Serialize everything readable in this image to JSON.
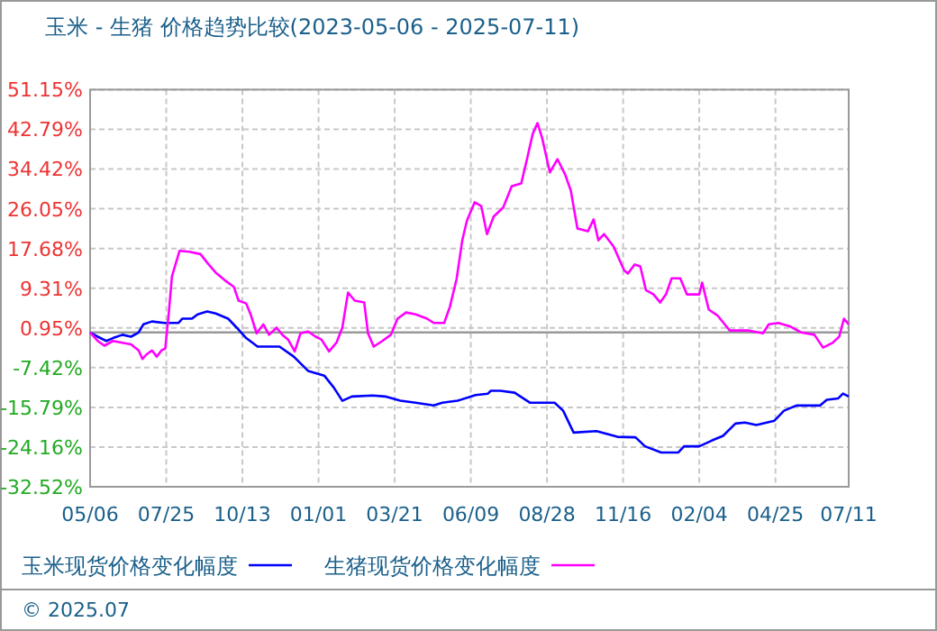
{
  "chart_data": {
    "type": "line",
    "title": "玉米 - 生猪 价格趋势比较(2023-05-06 - 2025-07-11)",
    "xlim": [
      "2023-05-06",
      "2025-07-11"
    ],
    "xticks": [
      {
        "value": "2023-05-06",
        "label": "05/06"
      },
      {
        "value": "2023-07-25",
        "label": "07/25"
      },
      {
        "value": "2023-10-13",
        "label": "10/13"
      },
      {
        "value": "2024-01-01",
        "label": "01/01"
      },
      {
        "value": "2024-03-21",
        "label": "03/21"
      },
      {
        "value": "2024-06-09",
        "label": "06/09"
      },
      {
        "value": "2024-08-28",
        "label": "08/28"
      },
      {
        "value": "2024-11-16",
        "label": "11/16"
      },
      {
        "value": "2025-02-04",
        "label": "02/04"
      },
      {
        "value": "2025-04-25",
        "label": "04/25"
      },
      {
        "value": "2025-07-11",
        "label": "07/11"
      }
    ],
    "ylim": [
      -32.52,
      51.15
    ],
    "yticks": [
      {
        "value": 51.15,
        "label": "51.15%"
      },
      {
        "value": 42.79,
        "label": "42.79%"
      },
      {
        "value": 34.42,
        "label": "34.42%"
      },
      {
        "value": 26.05,
        "label": "26.05%"
      },
      {
        "value": 17.68,
        "label": "17.68%"
      },
      {
        "value": 9.31,
        "label": "9.31%"
      },
      {
        "value": 0.95,
        "label": "0.95%"
      },
      {
        "value": -7.42,
        "label": "-7.42%"
      },
      {
        "value": -15.79,
        "label": "-15.79%"
      },
      {
        "value": -24.16,
        "label": "-24.16%"
      },
      {
        "value": -32.52,
        "label": "-32.52%"
      }
    ],
    "grid": true,
    "legend": "bottom",
    "line_style": "solid",
    "marker": "none",
    "ref_lines": [
      {
        "axis": "y",
        "value": 0,
        "color": "#999999"
      }
    ],
    "annotations": [
      "© 2025.07"
    ],
    "series": [
      {
        "name": "玉米现货价格变化幅度",
        "color": "#0000ff",
        "x": [
          "2023-05-06",
          "2023-05-14",
          "2023-05-23",
          "2023-05-30",
          "2023-06-09",
          "2023-06-18",
          "2023-06-26",
          "2023-07-01",
          "2023-07-10",
          "2023-07-23",
          "2023-08-07",
          "2023-08-11",
          "2023-08-21",
          "2023-08-27",
          "2023-09-06",
          "2023-09-15",
          "2023-09-28",
          "2023-10-07",
          "2023-10-17",
          "2023-10-29",
          "2023-11-21",
          "2023-12-06",
          "2023-12-21",
          "2024-01-07",
          "2024-01-17",
          "2024-01-26",
          "2024-02-05",
          "2024-02-27",
          "2024-03-11",
          "2024-03-27",
          "2024-04-12",
          "2024-05-01",
          "2024-05-10",
          "2024-05-26",
          "2024-06-14",
          "2024-06-27",
          "2024-06-30",
          "2024-07-10",
          "2024-07-25",
          "2024-08-10",
          "2024-09-05",
          "2024-09-14",
          "2024-09-25",
          "2024-10-19",
          "2024-11-10",
          "2024-11-29",
          "2024-12-09",
          "2024-12-26",
          "2025-01-13",
          "2025-01-19",
          "2025-02-04",
          "2025-02-17",
          "2025-03-01",
          "2025-03-14",
          "2025-03-24",
          "2025-04-05",
          "2025-04-24",
          "2025-05-04",
          "2025-05-17",
          "2025-06-11",
          "2025-06-18",
          "2025-06-30",
          "2025-07-05",
          "2025-07-11"
        ],
        "values": [
          0,
          -0.9,
          -1.8,
          -1.2,
          -0.5,
          -0.9,
          0,
          1.7,
          2.3,
          2.0,
          2.0,
          2.9,
          2.9,
          3.8,
          4.4,
          4.0,
          2.9,
          1.0,
          -1.2,
          -3.0,
          -3.0,
          -5.1,
          -8.1,
          -9.1,
          -11.6,
          -14.4,
          -13.5,
          -13.3,
          -13.5,
          -14.4,
          -14.8,
          -15.4,
          -14.8,
          -14.4,
          -13.2,
          -12.9,
          -12.3,
          -12.3,
          -12.7,
          -14.8,
          -14.8,
          -16.5,
          -21.1,
          -20.8,
          -22.0,
          -22.1,
          -24.0,
          -25.3,
          -25.3,
          -24.0,
          -24.0,
          -22.8,
          -21.8,
          -19.2,
          -19.0,
          -19.5,
          -18.6,
          -16.5,
          -15.4,
          -15.4,
          -14.2,
          -13.9,
          -12.9,
          -13.5
        ]
      },
      {
        "name": "生猪现货价格变化幅度",
        "color": "#ff00ff",
        "x": [
          "2023-05-06",
          "2023-05-14",
          "2023-05-21",
          "2023-05-30",
          "2023-06-09",
          "2023-06-18",
          "2023-06-26",
          "2023-06-30",
          "2023-07-04",
          "2023-07-10",
          "2023-07-15",
          "2023-07-20",
          "2023-07-24",
          "2023-07-28",
          "2023-07-31",
          "2023-08-08",
          "2023-08-18",
          "2023-08-30",
          "2023-09-06",
          "2023-09-15",
          "2023-09-25",
          "2023-10-04",
          "2023-10-09",
          "2023-10-17",
          "2023-10-22",
          "2023-10-28",
          "2023-11-04",
          "2023-11-10",
          "2023-11-18",
          "2023-11-24",
          "2023-11-30",
          "2023-12-07",
          "2023-12-13",
          "2023-12-21",
          "2023-12-29",
          "2024-01-04",
          "2024-01-12",
          "2024-01-20",
          "2024-01-26",
          "2024-02-01",
          "2024-02-08",
          "2024-02-18",
          "2024-02-22",
          "2024-02-28",
          "2024-03-08",
          "2024-03-17",
          "2024-03-24",
          "2024-04-02",
          "2024-04-12",
          "2024-04-24",
          "2024-05-01",
          "2024-05-12",
          "2024-05-18",
          "2024-05-25",
          "2024-05-31",
          "2024-06-05",
          "2024-06-13",
          "2024-06-20",
          "2024-06-26",
          "2024-07-03",
          "2024-07-13",
          "2024-07-22",
          "2024-08-01",
          "2024-08-07",
          "2024-08-13",
          "2024-08-18",
          "2024-08-23",
          "2024-08-31",
          "2024-09-08",
          "2024-09-16",
          "2024-09-22",
          "2024-09-29",
          "2024-10-10",
          "2024-10-16",
          "2024-10-21",
          "2024-10-27",
          "2024-11-06",
          "2024-11-17",
          "2024-11-21",
          "2024-11-28",
          "2024-12-04",
          "2024-12-10",
          "2024-12-18",
          "2024-12-25",
          "2024-12-31",
          "2025-01-06",
          "2025-01-15",
          "2025-01-22",
          "2025-02-04",
          "2025-02-07",
          "2025-02-14",
          "2025-02-23",
          "2025-03-08",
          "2025-03-27",
          "2025-04-12",
          "2025-04-18",
          "2025-04-28",
          "2025-05-10",
          "2025-05-22",
          "2025-06-05",
          "2025-06-14",
          "2025-06-24",
          "2025-07-01",
          "2025-07-06",
          "2025-07-11"
        ],
        "values": [
          0,
          -1.8,
          -2.8,
          -1.8,
          -2.2,
          -2.5,
          -3.8,
          -5.6,
          -4.7,
          -3.8,
          -5.1,
          -3.8,
          -3.4,
          4.8,
          11.8,
          17.2,
          17.0,
          16.5,
          14.7,
          12.6,
          10.9,
          9.6,
          6.7,
          6.1,
          3.6,
          -0.2,
          1.7,
          -0.5,
          1.0,
          -0.5,
          -1.5,
          -4.0,
          -0.2,
          0.2,
          -0.9,
          -1.5,
          -4.0,
          -2.1,
          1.0,
          8.4,
          6.7,
          6.3,
          -0.2,
          -3.0,
          -1.8,
          -0.5,
          2.9,
          4.2,
          3.8,
          2.9,
          2.0,
          2.0,
          5.4,
          11.2,
          19.4,
          23.6,
          27.4,
          26.6,
          20.7,
          24.4,
          26.3,
          30.8,
          31.4,
          36.5,
          41.8,
          44.1,
          40.9,
          33.7,
          36.5,
          33.3,
          29.9,
          21.9,
          21.3,
          23.8,
          19.4,
          20.7,
          18.1,
          13.1,
          12.4,
          14.3,
          13.9,
          8.9,
          8.0,
          6.3,
          8.0,
          11.4,
          11.4,
          8.0,
          8.0,
          10.5,
          4.8,
          3.6,
          0.4,
          0.4,
          -0.2,
          1.7,
          2.0,
          1.3,
          0.0,
          -0.5,
          -3.2,
          -2.2,
          -0.9,
          2.9,
          1.7
        ]
      }
    ]
  }
}
